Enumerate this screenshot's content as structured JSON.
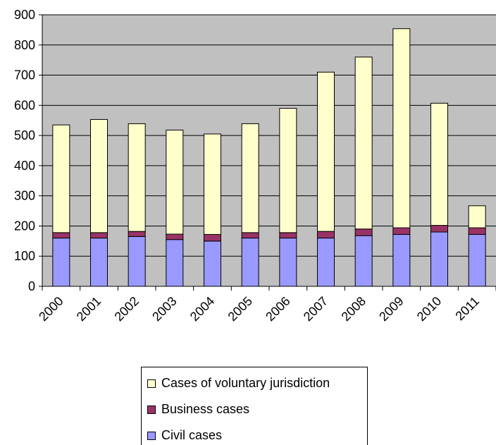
{
  "chart_data": {
    "type": "bar",
    "stacked": true,
    "categories": [
      "2000",
      "2001",
      "2002",
      "2003",
      "2004",
      "2005",
      "2006",
      "2007",
      "2008",
      "2009",
      "2010",
      "2011"
    ],
    "series": [
      {
        "name": "Civil cases",
        "color": "#9999ff",
        "values": [
          160,
          160,
          165,
          155,
          150,
          160,
          160,
          160,
          168,
          172,
          180,
          172
        ]
      },
      {
        "name": "Business cases",
        "color": "#993366",
        "values": [
          18,
          18,
          17,
          18,
          22,
          18,
          18,
          22,
          22,
          22,
          22,
          22
        ]
      },
      {
        "name": "Cases of voluntary jurisdiction",
        "color": "#ffffcc",
        "values": [
          357,
          375,
          357,
          345,
          333,
          361,
          412,
          528,
          570,
          660,
          405,
          73
        ]
      }
    ],
    "ylim": [
      0,
      900
    ],
    "yticks": [
      0,
      100,
      200,
      300,
      400,
      500,
      600,
      700,
      800,
      900
    ],
    "grid": true,
    "plot_background": "#c0c0c0",
    "legend_position": "bottom",
    "legend_order": [
      "Cases of voluntary jurisdiction",
      "Business cases",
      "Civil cases"
    ]
  }
}
